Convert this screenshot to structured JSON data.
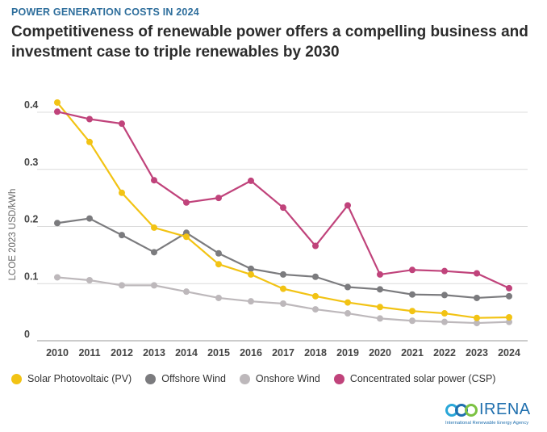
{
  "header": {
    "kicker": "POWER GENERATION COSTS IN 2024",
    "title": "Competitiveness of renewable power offers a compelling business and investment case to triple renewables by 2030"
  },
  "chart_data": {
    "type": "line",
    "ylabel": "LCOE 2023 USD/kWh",
    "xlabel": "",
    "ylim": [
      0,
      0.42
    ],
    "yticks": [
      0,
      0.1,
      0.2,
      0.3,
      0.4
    ],
    "ytick_labels": [
      "0",
      "0.1",
      "0.2",
      "0.3",
      "0.4"
    ],
    "x": [
      "2010",
      "2011",
      "2012",
      "2013",
      "2014",
      "2015",
      "2016",
      "2017",
      "2018",
      "2019",
      "2020",
      "2021",
      "2022",
      "2023",
      "2024"
    ],
    "grid": true,
    "legend_position": "bottom",
    "series": [
      {
        "name": "Solar Photovoltaic (PV)",
        "color": "#f2c314",
        "values": [
          0.417,
          0.348,
          0.259,
          0.198,
          0.182,
          0.134,
          0.116,
          0.091,
          0.078,
          0.067,
          0.059,
          0.052,
          0.048,
          0.04,
          0.041
        ]
      },
      {
        "name": "Offshore Wind",
        "color": "#7b7b7e",
        "values": [
          0.206,
          0.214,
          0.185,
          0.155,
          0.189,
          0.153,
          0.126,
          0.116,
          0.112,
          0.094,
          0.09,
          0.081,
          0.08,
          0.075,
          0.078
        ]
      },
      {
        "name": "Onshore Wind",
        "color": "#bdb8bb",
        "values": [
          0.111,
          0.106,
          0.097,
          0.097,
          0.086,
          0.075,
          0.069,
          0.065,
          0.055,
          0.048,
          0.039,
          0.035,
          0.033,
          0.031,
          0.033
        ]
      },
      {
        "name": "Concentrated solar power (CSP)",
        "color": "#c0437b",
        "values": [
          0.401,
          0.388,
          0.38,
          0.281,
          0.242,
          0.25,
          0.28,
          0.233,
          0.166,
          0.237,
          0.116,
          0.124,
          0.122,
          0.118,
          0.092
        ]
      }
    ]
  },
  "logo": {
    "name": "IRENA",
    "subtitle": "International Renewable Energy Agency",
    "color": "#1f6fae"
  }
}
